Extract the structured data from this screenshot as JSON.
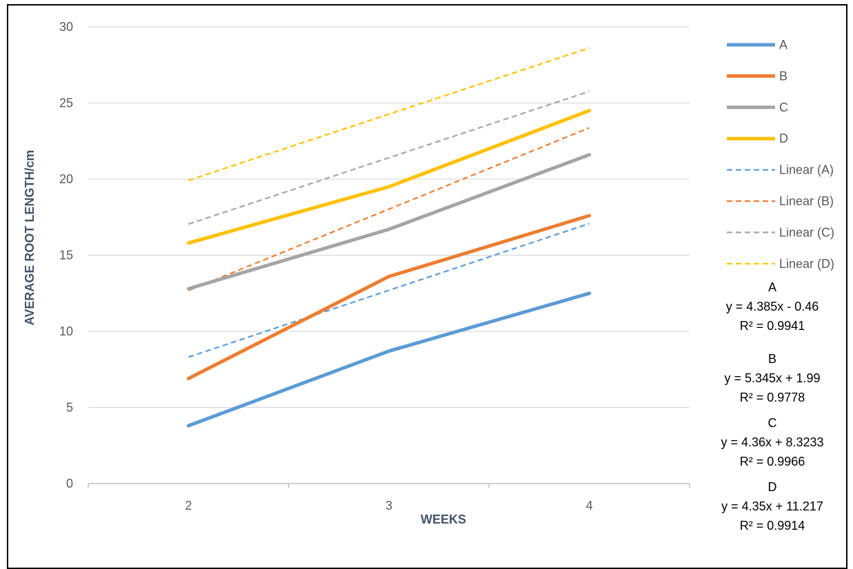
{
  "chart_data": {
    "type": "line",
    "title": "",
    "xlabel": "WEEKS",
    "ylabel": "AVERAGE ROOT LENGTH/cm",
    "x": [
      2,
      3,
      4
    ],
    "x_tick_labels": [
      "2",
      "3",
      "4"
    ],
    "ylim": [
      0,
      30
    ],
    "y_ticks": [
      0,
      5,
      10,
      15,
      20,
      25,
      30
    ],
    "grid": "horizontal",
    "legend_position": "right",
    "series": [
      {
        "name": "A",
        "color": "#5b9bd5",
        "style": "solid",
        "values": [
          3.8,
          8.7,
          12.5
        ]
      },
      {
        "name": "B",
        "color": "#ed7d31",
        "style": "solid",
        "values": [
          6.9,
          13.6,
          17.6
        ]
      },
      {
        "name": "C",
        "color": "#a5a5a5",
        "style": "solid",
        "values": [
          12.8,
          16.7,
          21.6
        ]
      },
      {
        "name": "D",
        "color": "#ffc000",
        "style": "solid",
        "values": [
          15.8,
          19.5,
          24.5
        ]
      },
      {
        "name": "Linear (A)",
        "color": "#5b9bd5",
        "style": "dashed",
        "trend": {
          "slope": 4.385,
          "intercept": -0.46
        }
      },
      {
        "name": "Linear (B)",
        "color": "#ed7d31",
        "style": "dashed",
        "trend": {
          "slope": 5.345,
          "intercept": 1.99
        }
      },
      {
        "name": "Linear (C)",
        "color": "#a5a5a5",
        "style": "dashed",
        "trend": {
          "slope": 4.36,
          "intercept": 8.3233
        }
      },
      {
        "name": "Linear (D)",
        "color": "#ffc000",
        "style": "dashed",
        "trend": {
          "slope": 4.35,
          "intercept": 11.217
        }
      }
    ],
    "equations": [
      {
        "label": "A",
        "equation": "y = 4.385x - 0.46",
        "r2": "R² = 0.9941"
      },
      {
        "label": "B",
        "equation": "y = 5.345x + 1.99",
        "r2": "R² = 0.9778"
      },
      {
        "label": "C",
        "equation": "y = 4.36x + 8.3233",
        "r2": "R² = 0.9966"
      },
      {
        "label": "D",
        "equation": "y = 4.35x + 11.217",
        "r2": "R² = 0.9914"
      }
    ]
  }
}
